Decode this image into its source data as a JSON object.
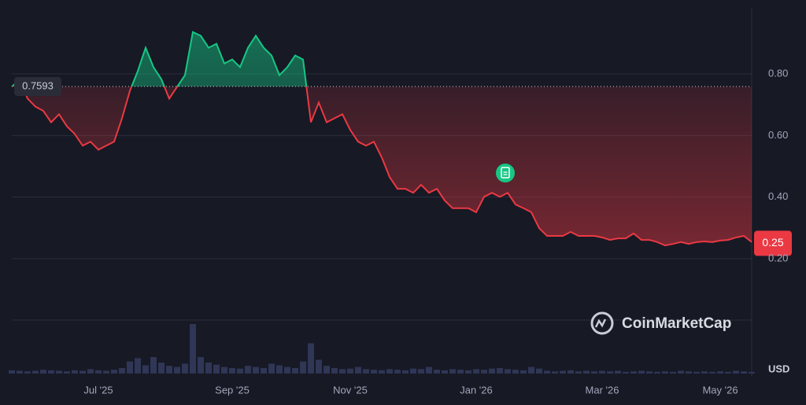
{
  "chart_data": {
    "type": "line",
    "categories": [
      null,
      null,
      null,
      null,
      null,
      null,
      null,
      null,
      null,
      null,
      null,
      "Jul '25",
      null,
      null,
      null,
      null,
      null,
      null,
      null,
      null,
      null,
      null,
      null,
      null,
      null,
      null,
      null,
      null,
      "Sep '25",
      null,
      null,
      null,
      null,
      null,
      null,
      null,
      null,
      null,
      null,
      null,
      null,
      null,
      null,
      "Nov '25",
      null,
      null,
      null,
      null,
      null,
      null,
      null,
      null,
      null,
      null,
      null,
      null,
      null,
      null,
      null,
      "Jan '26",
      null,
      null,
      null,
      null,
      null,
      null,
      null,
      null,
      null,
      null,
      null,
      null,
      null,
      null,
      null,
      "Mar '26",
      null,
      null,
      null,
      null,
      null,
      null,
      null,
      null,
      null,
      null,
      null,
      null,
      null,
      null,
      "May '26",
      null,
      null,
      null,
      null
    ],
    "values": [
      0.758,
      0.783,
      0.72,
      0.694,
      0.68,
      0.643,
      0.669,
      0.63,
      0.605,
      0.567,
      0.58,
      0.554,
      0.567,
      0.58,
      0.656,
      0.745,
      0.809,
      0.885,
      0.822,
      0.783,
      0.72,
      0.758,
      0.796,
      0.936,
      0.924,
      0.885,
      0.898,
      0.834,
      0.847,
      0.822,
      0.885,
      0.924,
      0.885,
      0.86,
      0.796,
      0.822,
      0.86,
      0.847,
      0.643,
      0.707,
      0.643,
      0.656,
      0.669,
      0.618,
      0.58,
      0.567,
      0.58,
      0.529,
      0.465,
      0.427,
      0.427,
      0.414,
      0.44,
      0.414,
      0.427,
      0.389,
      0.364,
      0.364,
      0.364,
      0.351,
      0.401,
      0.414,
      0.401,
      0.414,
      0.376,
      0.364,
      0.351,
      0.299,
      0.274,
      0.274,
      0.274,
      0.287,
      0.274,
      0.274,
      0.274,
      0.269,
      0.261,
      0.266,
      0.266,
      0.282,
      0.261,
      0.261,
      0.254,
      0.243,
      0.248,
      0.254,
      0.248,
      0.254,
      0.256,
      0.254,
      0.259,
      0.261,
      0.269,
      0.274,
      0.254
    ],
    "color_up": "#16c784",
    "color_down": "#ea3943",
    "baseline": 0.7593,
    "current_price": 0.25,
    "ylim": [
      0,
      1.0
    ],
    "yticks": [
      {
        "value": 0.2,
        "label": "0.20"
      },
      {
        "value": 0.4,
        "label": "0.40"
      },
      {
        "value": 0.6,
        "label": "0.60"
      },
      {
        "value": 0.8,
        "label": "0.80"
      }
    ],
    "grid": true,
    "volume": {
      "color": "#2f3656",
      "values": [
        6,
        5,
        4,
        5,
        7,
        6,
        5,
        4,
        6,
        5,
        8,
        6,
        5,
        7,
        10,
        22,
        28,
        15,
        30,
        20,
        14,
        12,
        18,
        90,
        30,
        20,
        16,
        12,
        10,
        9,
        14,
        12,
        10,
        18,
        15,
        12,
        10,
        22,
        55,
        25,
        14,
        10,
        8,
        9,
        12,
        8,
        7,
        6,
        8,
        7,
        6,
        9,
        8,
        12,
        7,
        6,
        8,
        7,
        6,
        8,
        7,
        9,
        10,
        8,
        7,
        6,
        12,
        9,
        5,
        4,
        5,
        6,
        4,
        5,
        4,
        5,
        4,
        5,
        3,
        4,
        5,
        4,
        3,
        4,
        3,
        5,
        4,
        3,
        4,
        3,
        4,
        3,
        5,
        4,
        3
      ]
    },
    "volume_ylim": [
      0,
      100
    ],
    "currency": "USD",
    "watermark": "CoinMarketCap"
  }
}
